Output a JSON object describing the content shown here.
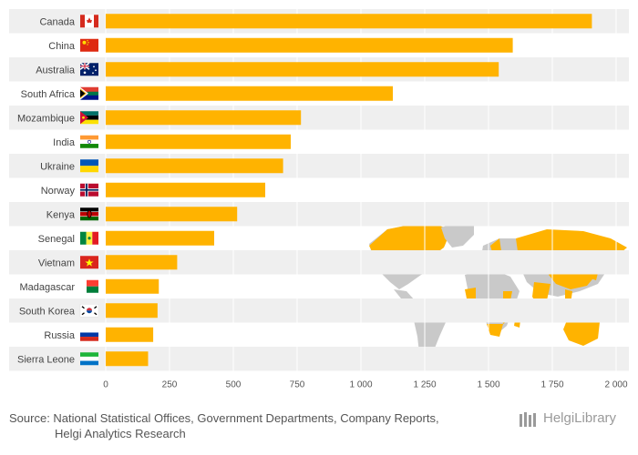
{
  "chart_data": {
    "type": "bar",
    "orientation": "horizontal",
    "title": "",
    "xlabel": "",
    "ylabel": "",
    "xlim": [
      0,
      2000
    ],
    "xticks": [
      0,
      250,
      500,
      750,
      1000,
      1250,
      1500,
      1750,
      2000
    ],
    "xtick_labels": [
      "0",
      "250",
      "500",
      "750",
      "1 000",
      "1 250",
      "1 500",
      "1 750",
      "2 000"
    ],
    "categories": [
      "Canada",
      "China",
      "Australia",
      "South Africa",
      "Mozambique",
      "India",
      "Ukraine",
      "Norway",
      "Kenya",
      "Senegal",
      "Vietnam",
      "Madagascar",
      "South Korea",
      "Russia",
      "Sierra Leone"
    ],
    "values": [
      1905,
      1595,
      1540,
      1125,
      765,
      725,
      695,
      625,
      515,
      425,
      280,
      208,
      203,
      186,
      166
    ],
    "grid": true,
    "bar_color": "#FFB300",
    "flags": [
      "flag-canada-icon",
      "flag-china-icon",
      "flag-australia-icon",
      "flag-south-africa-icon",
      "flag-mozambique-icon",
      "flag-india-icon",
      "flag-ukraine-icon",
      "flag-norway-icon",
      "flag-kenya-icon",
      "flag-senegal-icon",
      "flag-vietnam-icon",
      "flag-madagascar-icon",
      "flag-south-korea-icon",
      "flag-russia-icon",
      "flag-sierra-leone-icon"
    ]
  },
  "source": {
    "line1": "Source: National Statistical Offices, Government Departments, Company Reports,",
    "line2": "Helgi Analytics Research"
  },
  "logo": {
    "text": "HelgiLibrary"
  }
}
